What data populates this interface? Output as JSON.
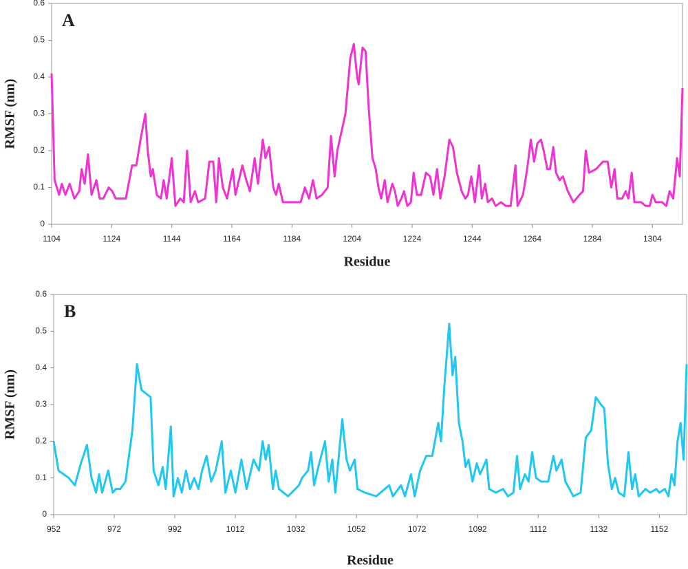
{
  "chart_data": [
    {
      "type": "line",
      "annotation": "A",
      "xlabel": "Residue",
      "ylabel": "RMSF (nm)",
      "xlim": [
        1104,
        1314
      ],
      "ylim": [
        0,
        0.6
      ],
      "xticks": [
        1104,
        1124,
        1144,
        1164,
        1184,
        1204,
        1224,
        1244,
        1264,
        1284,
        1304
      ],
      "yticks": [
        0,
        0.1,
        0.2,
        0.3,
        0.4,
        0.5,
        0.6
      ],
      "x": [
        1104,
        1105,
        1106.5,
        1107.4,
        1108.6,
        1110,
        1111.6,
        1113.2,
        1114,
        1115,
        1116.1,
        1117.3,
        1118.9,
        1120,
        1121.2,
        1123,
        1124.2,
        1125.3,
        1128.7,
        1130.8,
        1132.2,
        1133.6,
        1135.2,
        1136,
        1137,
        1137.7,
        1139,
        1140.4,
        1141.3,
        1142.3,
        1144,
        1145.2,
        1146.8,
        1148,
        1149.1,
        1150.3,
        1151.7,
        1152.8,
        1155.1,
        1156.5,
        1157.8,
        1158.8,
        1159.7,
        1161,
        1162.4,
        1164.3,
        1165.2,
        1167.5,
        1168.8,
        1170,
        1171.6,
        1172.7,
        1174.3,
        1175.2,
        1176.4,
        1177.8,
        1178.7,
        1179.6,
        1181,
        1183,
        1185.3,
        1186.9,
        1188.3,
        1189.7,
        1191,
        1192.2,
        1194,
        1195.9,
        1197,
        1198.2,
        1199.1,
        1201.8,
        1203.4,
        1204.6,
        1205.7,
        1206.2,
        1207.5,
        1208.5,
        1209.6,
        1210.8,
        1211.9,
        1212.8,
        1213.7,
        1214.9,
        1215.8,
        1217.4,
        1218.3,
        1219.2,
        1220.4,
        1221.3,
        1222.4,
        1223.6,
        1224.5,
        1225.6,
        1227,
        1228.6,
        1230,
        1231.1,
        1232.3,
        1233.4,
        1234.8,
        1236.4,
        1237.6,
        1238.9,
        1240.5,
        1241.7,
        1242.6,
        1243.7,
        1244.9,
        1246.3,
        1247.2,
        1248.3,
        1249.2,
        1250.6,
        1251.8,
        1253.6,
        1255.2,
        1256.8,
        1258.4,
        1259.1,
        1260.9,
        1262.3,
        1263.5,
        1264.6,
        1265.7,
        1266.9,
        1267.8,
        1269,
        1269.9,
        1271,
        1271.9,
        1273.1,
        1274.2,
        1275.8,
        1277.7,
        1279.7,
        1280.9,
        1281.8,
        1282.9,
        1285.2,
        1287.5,
        1289.1,
        1290.3,
        1291.4,
        1292.3,
        1293.9,
        1295.1,
        1296,
        1297.1,
        1298,
        1300.3,
        1301.7,
        1303.1,
        1304,
        1305.1,
        1307.2,
        1308.6,
        1309.7,
        1310.9,
        1312.2,
        1313.1,
        1314
      ],
      "series": [
        {
          "color": "#f032d2",
          "values": [
            0.41,
            0.12,
            0.08,
            0.11,
            0.08,
            0.11,
            0.07,
            0.09,
            0.15,
            0.11,
            0.19,
            0.08,
            0.12,
            0.07,
            0.07,
            0.1,
            0.09,
            0.07,
            0.07,
            0.16,
            0.16,
            0.23,
            0.3,
            0.2,
            0.13,
            0.15,
            0.08,
            0.07,
            0.12,
            0.07,
            0.18,
            0.05,
            0.07,
            0.06,
            0.2,
            0.06,
            0.09,
            0.06,
            0.07,
            0.17,
            0.17,
            0.06,
            0.18,
            0.1,
            0.07,
            0.15,
            0.08,
            0.16,
            0.12,
            0.09,
            0.18,
            0.11,
            0.23,
            0.18,
            0.21,
            0.1,
            0.08,
            0.11,
            0.06,
            0.06,
            0.06,
            0.06,
            0.1,
            0.07,
            0.12,
            0.07,
            0.08,
            0.1,
            0.24,
            0.13,
            0.2,
            0.3,
            0.45,
            0.49,
            0.4,
            0.38,
            0.48,
            0.47,
            0.31,
            0.18,
            0.15,
            0.1,
            0.07,
            0.12,
            0.06,
            0.11,
            0.09,
            0.05,
            0.07,
            0.09,
            0.05,
            0.06,
            0.14,
            0.08,
            0.08,
            0.14,
            0.13,
            0.08,
            0.15,
            0.07,
            0.13,
            0.23,
            0.21,
            0.14,
            0.09,
            0.07,
            0.08,
            0.13,
            0.06,
            0.16,
            0.07,
            0.11,
            0.06,
            0.07,
            0.05,
            0.06,
            0.05,
            0.05,
            0.16,
            0.05,
            0.08,
            0.15,
            0.23,
            0.17,
            0.22,
            0.23,
            0.2,
            0.15,
            0.15,
            0.21,
            0.14,
            0.12,
            0.13,
            0.09,
            0.06,
            0.08,
            0.09,
            0.2,
            0.14,
            0.15,
            0.17,
            0.17,
            0.1,
            0.15,
            0.07,
            0.07,
            0.09,
            0.07,
            0.14,
            0.06,
            0.06,
            0.05,
            0.05,
            0.08,
            0.06,
            0.06,
            0.05,
            0.09,
            0.07,
            0.18,
            0.13,
            0.37
          ]
        }
      ]
    },
    {
      "type": "line",
      "annotation": "B",
      "xlabel": "Residue",
      "ylabel": "RMSF (nm)",
      "xlim": [
        952,
        1161
      ],
      "ylim": [
        0,
        0.6
      ],
      "xticks": [
        952,
        972,
        992,
        1012,
        1032,
        1052,
        1072,
        1092,
        1112,
        1132,
        1152
      ],
      "yticks": [
        0,
        0.1,
        0.2,
        0.3,
        0.4,
        0.5,
        0.6
      ],
      "x": [
        952,
        953.6,
        957,
        959,
        961,
        963,
        964.5,
        966,
        967,
        968,
        970,
        971.5,
        972.5,
        974,
        975.7,
        978,
        979.5,
        981,
        982.5,
        984,
        985,
        986.6,
        988,
        989,
        990.7,
        991.6,
        993,
        994.3,
        995.7,
        997,
        998.4,
        999.8,
        1001,
        1002.5,
        1004,
        1005.5,
        1007.5,
        1008.7,
        1010.5,
        1012,
        1014,
        1015.7,
        1018,
        1019.8,
        1021,
        1022,
        1023,
        1024.4,
        1025.3,
        1026.4,
        1029.4,
        1033,
        1034,
        1036,
        1037,
        1038,
        1039.4,
        1041.6,
        1042.8,
        1044,
        1045,
        1047.3,
        1048.7,
        1049.8,
        1051.4,
        1052.3,
        1054.8,
        1058.5,
        1062.8,
        1064,
        1066.7,
        1068,
        1070,
        1071.2,
        1073,
        1075,
        1077,
        1079,
        1079.9,
        1081,
        1082.6,
        1083.7,
        1084.6,
        1085.8,
        1087,
        1088,
        1089,
        1090.3,
        1091.7,
        1092.8,
        1094.9,
        1095.8,
        1098,
        1100.4,
        1102,
        1103.8,
        1105,
        1106,
        1107.6,
        1108.8,
        1110,
        1111.3,
        1113,
        1115.3,
        1117,
        1118,
        1119.7,
        1121,
        1123.6,
        1126,
        1127.7,
        1129.5,
        1131,
        1132.7,
        1133.8,
        1135,
        1136.3,
        1137.4,
        1138.6,
        1140.4,
        1141.8,
        1143,
        1144,
        1145.2,
        1147.4,
        1149,
        1151,
        1152,
        1153.8,
        1155,
        1156,
        1157,
        1158,
        1159,
        1160,
        1161
      ],
      "series": [
        {
          "color": "#1ec8f0",
          "values": [
            0.2,
            0.12,
            0.1,
            0.08,
            0.14,
            0.19,
            0.1,
            0.06,
            0.11,
            0.06,
            0.12,
            0.06,
            0.07,
            0.07,
            0.09,
            0.23,
            0.41,
            0.34,
            0.33,
            0.32,
            0.12,
            0.08,
            0.13,
            0.07,
            0.24,
            0.05,
            0.1,
            0.06,
            0.12,
            0.07,
            0.1,
            0.07,
            0.12,
            0.16,
            0.09,
            0.12,
            0.2,
            0.06,
            0.12,
            0.06,
            0.15,
            0.07,
            0.15,
            0.12,
            0.2,
            0.15,
            0.19,
            0.07,
            0.12,
            0.07,
            0.05,
            0.08,
            0.1,
            0.12,
            0.17,
            0.08,
            0.13,
            0.2,
            0.09,
            0.15,
            0.06,
            0.26,
            0.15,
            0.12,
            0.15,
            0.07,
            0.06,
            0.05,
            0.08,
            0.05,
            0.08,
            0.05,
            0.11,
            0.05,
            0.12,
            0.16,
            0.16,
            0.25,
            0.2,
            0.35,
            0.52,
            0.38,
            0.43,
            0.25,
            0.2,
            0.13,
            0.15,
            0.09,
            0.14,
            0.11,
            0.15,
            0.07,
            0.06,
            0.07,
            0.05,
            0.06,
            0.16,
            0.07,
            0.11,
            0.09,
            0.17,
            0.1,
            0.09,
            0.09,
            0.16,
            0.12,
            0.15,
            0.09,
            0.05,
            0.06,
            0.21,
            0.23,
            0.32,
            0.3,
            0.29,
            0.14,
            0.07,
            0.1,
            0.06,
            0.05,
            0.17,
            0.07,
            0.11,
            0.05,
            0.07,
            0.06,
            0.07,
            0.06,
            0.07,
            0.05,
            0.11,
            0.08,
            0.2,
            0.25,
            0.15,
            0.41
          ]
        }
      ]
    }
  ]
}
